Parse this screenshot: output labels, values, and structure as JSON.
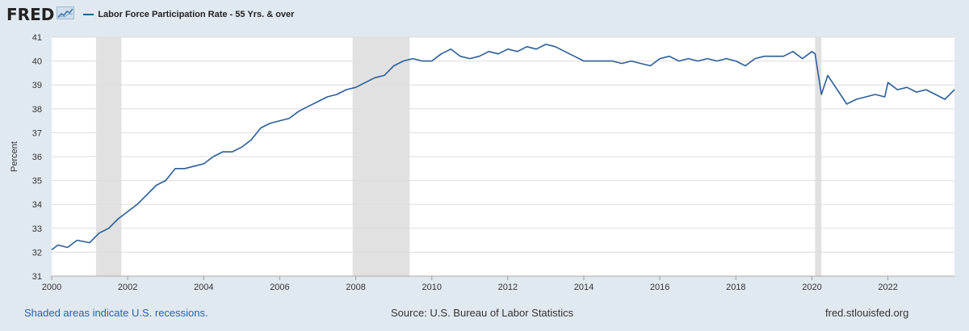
{
  "header": {
    "logo_text": "FRED",
    "legend_label": "Labor Force Participation Rate - 55 Yrs. & over"
  },
  "colors": {
    "series": "#2a5e9a",
    "background": "#e1e9f0",
    "plot": "#ffffff",
    "recession": "#e1e1e1",
    "grid": "#dddddd"
  },
  "footer": {
    "recession_note": "Shaded areas indicate U.S. recessions.",
    "source": "Source: U.S. Bureau of Labor Statistics",
    "site": "fred.stlouisfed.org"
  },
  "chart_data": {
    "type": "line",
    "ylabel": "Percent",
    "ylim": [
      31,
      41
    ],
    "xlim": [
      "2000-01",
      "2023-10"
    ],
    "yticks": [
      31,
      32,
      33,
      34,
      35,
      36,
      37,
      38,
      39,
      40,
      41
    ],
    "xticks": [
      "2000",
      "2002",
      "2004",
      "2006",
      "2008",
      "2010",
      "2012",
      "2014",
      "2016",
      "2018",
      "2020",
      "2022"
    ],
    "grid": true,
    "recessions": [
      {
        "start": "2001-03",
        "end": "2001-11"
      },
      {
        "start": "2007-12",
        "end": "2009-06"
      },
      {
        "start": "2020-02",
        "end": "2020-04"
      }
    ],
    "series": [
      {
        "name": "Labor Force Participation Rate - 55 Yrs. & over",
        "x": [
          "2000-01",
          "2000-03",
          "2000-06",
          "2000-09",
          "2001-01",
          "2001-04",
          "2001-07",
          "2001-10",
          "2002-01",
          "2002-04",
          "2002-07",
          "2002-10",
          "2003-01",
          "2003-04",
          "2003-07",
          "2003-10",
          "2004-01",
          "2004-04",
          "2004-07",
          "2004-10",
          "2005-01",
          "2005-04",
          "2005-07",
          "2005-10",
          "2006-01",
          "2006-04",
          "2006-07",
          "2006-10",
          "2007-01",
          "2007-04",
          "2007-07",
          "2007-10",
          "2008-01",
          "2008-04",
          "2008-07",
          "2008-10",
          "2009-01",
          "2009-04",
          "2009-07",
          "2009-10",
          "2010-01",
          "2010-04",
          "2010-07",
          "2010-10",
          "2011-01",
          "2011-04",
          "2011-07",
          "2011-10",
          "2012-01",
          "2012-04",
          "2012-07",
          "2012-10",
          "2013-01",
          "2013-04",
          "2013-07",
          "2013-10",
          "2014-01",
          "2014-04",
          "2014-07",
          "2014-10",
          "2015-01",
          "2015-04",
          "2015-07",
          "2015-10",
          "2016-01",
          "2016-04",
          "2016-07",
          "2016-10",
          "2017-01",
          "2017-04",
          "2017-07",
          "2017-10",
          "2018-01",
          "2018-04",
          "2018-07",
          "2018-10",
          "2019-01",
          "2019-04",
          "2019-07",
          "2019-10",
          "2020-01",
          "2020-02",
          "2020-04",
          "2020-06",
          "2020-08",
          "2020-10",
          "2020-12",
          "2021-03",
          "2021-06",
          "2021-09",
          "2021-12",
          "2022-01",
          "2022-04",
          "2022-07",
          "2022-10",
          "2023-01",
          "2023-04",
          "2023-07",
          "2023-10"
        ],
        "values": [
          32.1,
          32.3,
          32.2,
          32.5,
          32.4,
          32.8,
          33.0,
          33.4,
          33.7,
          34.0,
          34.4,
          34.8,
          35.0,
          35.5,
          35.5,
          35.6,
          35.7,
          36.0,
          36.2,
          36.2,
          36.4,
          36.7,
          37.2,
          37.4,
          37.5,
          37.6,
          37.9,
          38.1,
          38.3,
          38.5,
          38.6,
          38.8,
          38.9,
          39.1,
          39.3,
          39.4,
          39.8,
          40.0,
          40.1,
          40.0,
          40.0,
          40.3,
          40.5,
          40.2,
          40.1,
          40.2,
          40.4,
          40.3,
          40.5,
          40.4,
          40.6,
          40.5,
          40.7,
          40.6,
          40.4,
          40.2,
          40.0,
          40.0,
          40.0,
          40.0,
          39.9,
          40.0,
          39.9,
          39.8,
          40.1,
          40.2,
          40.0,
          40.1,
          40.0,
          40.1,
          40.0,
          40.1,
          40.0,
          39.8,
          40.1,
          40.2,
          40.2,
          40.2,
          40.4,
          40.1,
          40.4,
          40.3,
          38.6,
          39.4,
          39.0,
          38.6,
          38.2,
          38.4,
          38.5,
          38.6,
          38.5,
          39.1,
          38.8,
          38.9,
          38.7,
          38.8,
          38.6,
          38.4,
          38.8
        ]
      }
    ]
  }
}
